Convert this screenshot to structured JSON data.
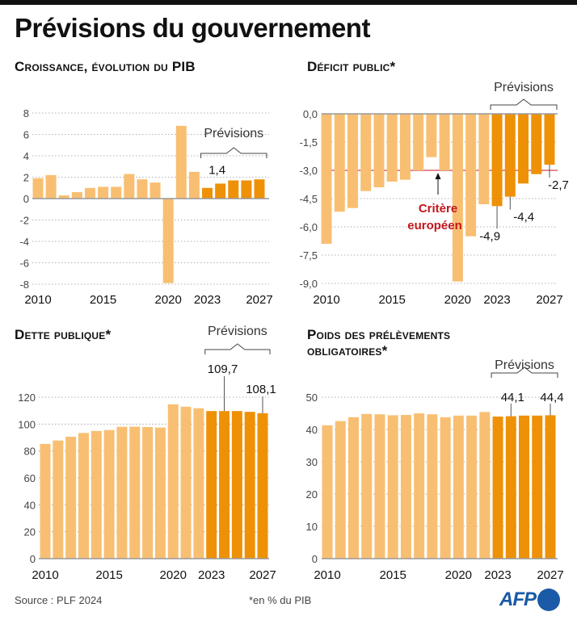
{
  "title": "Prévisions du gouvernement",
  "footer": {
    "source": "Source : PLF 2024",
    "note": "*en % du PIB",
    "logo": "AFP"
  },
  "colors": {
    "historical": "#F8BF72",
    "forecast": "#EE9107",
    "criterion": "#C4161C",
    "brand": "#1A5AA6"
  },
  "chart_data": [
    {
      "id": "growth",
      "type": "bar",
      "title": "Croissance, évolution du PIB",
      "categories": [
        "2010",
        "2011",
        "2012",
        "2013",
        "2014",
        "2015",
        "2016",
        "2017",
        "2018",
        "2019",
        "2020",
        "2021",
        "2022",
        "2023",
        "2024",
        "2025",
        "2026",
        "2027"
      ],
      "x_tick_labels": [
        "2010",
        "2015",
        "2020",
        "2023",
        "2027"
      ],
      "values": [
        1.9,
        2.2,
        0.3,
        0.6,
        1.0,
        1.1,
        1.1,
        2.3,
        1.8,
        1.5,
        -7.9,
        6.8,
        2.5,
        1.0,
        1.4,
        1.7,
        1.7,
        1.8
      ],
      "forecast_from": "2023",
      "forecast_label": "Prévisions",
      "ylim": [
        -8,
        8
      ],
      "yticks": [
        8,
        6,
        4,
        2,
        0,
        -2,
        -4,
        -6,
        -8
      ],
      "ytick_labels": [
        "8",
        "6",
        "4",
        "2",
        "0",
        "-2",
        "-4",
        "-6",
        "-8"
      ],
      "annotations": [
        {
          "category": "2024",
          "text": "1,4"
        }
      ],
      "grid": true
    },
    {
      "id": "deficit",
      "type": "bar",
      "title": "Déficit public*",
      "categories": [
        "2010",
        "2011",
        "2012",
        "2013",
        "2014",
        "2015",
        "2016",
        "2017",
        "2018",
        "2019",
        "2020",
        "2021",
        "2022",
        "2023",
        "2024",
        "2025",
        "2026",
        "2027"
      ],
      "x_tick_labels": [
        "2010",
        "2015",
        "2020",
        "2023",
        "2027"
      ],
      "values": [
        -6.9,
        -5.2,
        -5.0,
        -4.1,
        -3.9,
        -3.6,
        -3.5,
        -3.0,
        -2.3,
        -3.0,
        -8.9,
        -6.5,
        -4.8,
        -4.9,
        -4.4,
        -3.7,
        -3.2,
        -2.7
      ],
      "forecast_from": "2023",
      "forecast_label": "Prévisions",
      "ylim": [
        -9,
        0
      ],
      "yticks": [
        0,
        -1.5,
        -3,
        -4.5,
        -6,
        -7.5,
        -9
      ],
      "ytick_labels": [
        "0,0",
        "-1,5",
        "-3,0",
        "-4,5",
        "-6,0",
        "-7,5",
        "-9,0"
      ],
      "reference_line": {
        "value": -3.0,
        "label_line1": "Critère",
        "label_line2": "européen"
      },
      "annotations": [
        {
          "category": "2023",
          "text": "-4,9"
        },
        {
          "category": "2024",
          "text": "-4,4"
        },
        {
          "category": "2027",
          "text": "-2,7"
        }
      ],
      "grid": true
    },
    {
      "id": "debt",
      "type": "bar",
      "title": "Dette publique*",
      "categories": [
        "2010",
        "2011",
        "2012",
        "2013",
        "2014",
        "2015",
        "2016",
        "2017",
        "2018",
        "2019",
        "2020",
        "2021",
        "2022",
        "2023",
        "2024",
        "2025",
        "2026",
        "2027"
      ],
      "x_tick_labels": [
        "2010",
        "2015",
        "2020",
        "2023",
        "2027"
      ],
      "values": [
        85.3,
        87.8,
        90.6,
        93.4,
        94.9,
        95.6,
        98.0,
        98.1,
        97.8,
        97.4,
        114.7,
        112.9,
        111.8,
        109.7,
        109.7,
        109.7,
        109.1,
        108.1
      ],
      "forecast_from": "2023",
      "forecast_label": "Prévisions",
      "ylim": [
        0,
        120
      ],
      "yticks": [
        120,
        100,
        80,
        60,
        40,
        20,
        0
      ],
      "ytick_labels": [
        "120",
        "100",
        "80",
        "60",
        "40",
        "20",
        "0"
      ],
      "annotations": [
        {
          "category": "2024",
          "text": "109,7"
        },
        {
          "category": "2027",
          "text": "108,1"
        }
      ],
      "grid": true
    },
    {
      "id": "tax",
      "type": "bar",
      "title": "Poids des prélèvements obligatoires*",
      "title_line1": "Poids des prélèvements",
      "title_line2": "obligatoires*",
      "categories": [
        "2010",
        "2011",
        "2012",
        "2013",
        "2014",
        "2015",
        "2016",
        "2017",
        "2018",
        "2019",
        "2020",
        "2021",
        "2022",
        "2023",
        "2024",
        "2025",
        "2026",
        "2027"
      ],
      "x_tick_labels": [
        "2010",
        "2015",
        "2020",
        "2023",
        "2027"
      ],
      "values": [
        41.3,
        42.6,
        43.8,
        44.8,
        44.7,
        44.4,
        44.5,
        45.0,
        44.7,
        43.8,
        44.3,
        44.3,
        45.4,
        44.0,
        44.1,
        44.3,
        44.3,
        44.4
      ],
      "forecast_from": "2023",
      "forecast_label": "Prévisions",
      "ylim": [
        0,
        50
      ],
      "yticks": [
        50,
        40,
        30,
        20,
        10,
        0
      ],
      "ytick_labels": [
        "50",
        "40",
        "30",
        "20",
        "10",
        "0"
      ],
      "annotations": [
        {
          "category": "2024",
          "text": "44,1"
        },
        {
          "category": "2027",
          "text": "44,4"
        }
      ],
      "grid": true
    }
  ]
}
